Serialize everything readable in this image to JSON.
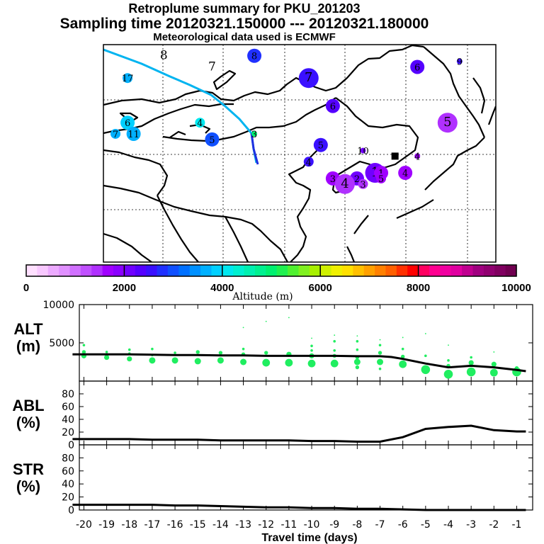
{
  "title": {
    "line1": "Retroplume summary for PKU_201203",
    "line2": "Sampling time   20120321.150000 --- 20120321.180000",
    "line3": "Meteorological data used is ECMWF"
  },
  "chart_data": [
    {
      "type": "scatter",
      "name": "retroplume-map",
      "description": "Backward plume cluster centroids on map of East Asia; labels are days before sampling",
      "receptor_lonlat": [
        116.3,
        40.0
      ],
      "clusters": [
        {
          "label": "8",
          "lon": 78,
          "lat": 58,
          "alt_m": 10,
          "size": "none"
        },
        {
          "label": "7",
          "lon": 86,
          "lat": 56,
          "alt_m": 10,
          "size": "none"
        },
        {
          "label": "17",
          "lon": 72,
          "lat": 54,
          "alt_m": 3600,
          "size": "small"
        },
        {
          "label": "6",
          "lon": 72,
          "lat": 46,
          "alt_m": 3900,
          "size": "medium"
        },
        {
          "label": "7",
          "lon": 70,
          "lat": 44,
          "alt_m": 3700,
          "size": "small"
        },
        {
          "label": "11",
          "lon": 73,
          "lat": 44,
          "alt_m": 3700,
          "size": "medium"
        },
        {
          "label": "4",
          "lon": 84,
          "lat": 46,
          "alt_m": 4200,
          "size": "small"
        },
        {
          "label": "5",
          "lon": 86,
          "lat": 43,
          "alt_m": 3000,
          "size": "medium"
        },
        {
          "label": "3",
          "lon": 93,
          "lat": 44,
          "alt_m": 5000,
          "size": "tiny"
        },
        {
          "label": "8",
          "lon": 93,
          "lat": 58,
          "alt_m": 2700,
          "size": "medium"
        },
        {
          "label": "7",
          "lon": 102,
          "lat": 54,
          "alt_m": 2600,
          "size": "large"
        },
        {
          "label": "6",
          "lon": 106,
          "lat": 49,
          "alt_m": 2400,
          "size": "medium"
        },
        {
          "label": "6",
          "lon": 120,
          "lat": 56,
          "alt_m": 2400,
          "size": "medium"
        },
        {
          "label": "9",
          "lon": 127,
          "lat": 57,
          "alt_m": 2600,
          "size": "tiny"
        },
        {
          "label": "5",
          "lon": 104,
          "lat": 42,
          "alt_m": 2500,
          "size": "medium"
        },
        {
          "label": "4",
          "lon": 102,
          "lat": 39,
          "alt_m": 2500,
          "size": "small"
        },
        {
          "label": "5",
          "lon": 125,
          "lat": 46,
          "alt_m": 1500,
          "size": "large"
        },
        {
          "label": "10",
          "lon": 111,
          "lat": 41,
          "alt_m": 2100,
          "size": "tiny"
        },
        {
          "label": "4",
          "lon": 120,
          "lat": 40,
          "alt_m": 1600,
          "size": "tiny"
        },
        {
          "label": "1",
          "lon": 113,
          "lat": 37,
          "alt_m": 2100,
          "size": "large"
        },
        {
          "label": "3",
          "lon": 106,
          "lat": 36,
          "alt_m": 1700,
          "size": "medium"
        },
        {
          "label": "2",
          "lon": 110,
          "lat": 36,
          "alt_m": 2000,
          "size": "medium"
        },
        {
          "label": "1",
          "lon": 114,
          "lat": 37,
          "alt_m": 1700,
          "size": "medium"
        },
        {
          "label": "4",
          "lon": 108,
          "lat": 35,
          "alt_m": 1500,
          "size": "large"
        },
        {
          "label": "3",
          "lon": 111,
          "lat": 35,
          "alt_m": 1500,
          "size": "small"
        },
        {
          "label": "5",
          "lon": 114,
          "lat": 36,
          "alt_m": 1600,
          "size": "small"
        },
        {
          "label": "4",
          "lon": 118,
          "lat": 37,
          "alt_m": 1600,
          "size": "medium"
        }
      ]
    },
    {
      "type": "heatmap",
      "name": "altitude-colorbar",
      "xlabel": "Altitude (m)",
      "range": [
        0,
        10000
      ],
      "ticks": [
        0,
        2000,
        4000,
        6000,
        8000,
        10000
      ],
      "colors": [
        "#ffe0ff",
        "#f8c8ff",
        "#ecaaff",
        "#e090ff",
        "#d070ff",
        "#c050ff",
        "#b030ff",
        "#a000ff",
        "#8a00ff",
        "#7000ff",
        "#5500ff",
        "#3a10ff",
        "#2030ff",
        "#1050ff",
        "#0070ff",
        "#0090ff",
        "#00b0ff",
        "#00d0ff",
        "#00e8f0",
        "#00f0d0",
        "#00f0b0",
        "#00f090",
        "#00f070",
        "#20f050",
        "#50f030",
        "#80f020",
        "#a8f000",
        "#d0f000",
        "#f0f000",
        "#ffe000",
        "#ffc000",
        "#ffa000",
        "#ff8000",
        "#ff6000",
        "#ff3000",
        "#ff0000",
        "#ff0060",
        "#ff0090",
        "#f000a0",
        "#e000a0",
        "#c00090",
        "#a00080",
        "#900070",
        "#800060",
        "#700050"
      ]
    },
    {
      "type": "line",
      "name": "altitude-panel",
      "ylabel": "ALT\n(m)",
      "ylim": [
        0,
        10000
      ],
      "yticks": [
        5000,
        10000
      ],
      "x": [
        -20.5,
        -20,
        -19,
        -18,
        -17,
        -16,
        -15,
        -14,
        -13,
        -12,
        -11,
        -10,
        -9,
        -8,
        -7,
        -6.5,
        -6,
        -5,
        -4,
        -3,
        -2,
        -1,
        -0.6
      ],
      "mean_altitude": [
        3500,
        3500,
        3500,
        3500,
        3450,
        3400,
        3400,
        3350,
        3350,
        3300,
        3300,
        3300,
        3300,
        3250,
        3250,
        3150,
        2900,
        2300,
        1800,
        2000,
        1800,
        1450,
        1300
      ],
      "points": [
        {
          "x": -20,
          "alt": 3300,
          "s": 4
        },
        {
          "x": -20,
          "alt": 3800,
          "s": 3
        },
        {
          "x": -20,
          "alt": 4700,
          "s": 2
        },
        {
          "x": -19,
          "alt": 3100,
          "s": 4
        },
        {
          "x": -19,
          "alt": 3800,
          "s": 2
        },
        {
          "x": -18,
          "alt": 2900,
          "s": 4
        },
        {
          "x": -18,
          "alt": 3600,
          "s": 2
        },
        {
          "x": -18,
          "alt": 4100,
          "s": 2
        },
        {
          "x": -17,
          "alt": 2700,
          "s": 5
        },
        {
          "x": -17,
          "alt": 3400,
          "s": 2
        },
        {
          "x": -17,
          "alt": 4200,
          "s": 2
        },
        {
          "x": -16,
          "alt": 2700,
          "s": 5
        },
        {
          "x": -16,
          "alt": 3700,
          "s": 2
        },
        {
          "x": -15,
          "alt": 2600,
          "s": 5
        },
        {
          "x": -15,
          "alt": 3800,
          "s": 3
        },
        {
          "x": -14,
          "alt": 2700,
          "s": 5
        },
        {
          "x": -14,
          "alt": 3700,
          "s": 3
        },
        {
          "x": -13,
          "alt": 2500,
          "s": 5
        },
        {
          "x": -13,
          "alt": 3500,
          "s": 3
        },
        {
          "x": -13,
          "alt": 4200,
          "s": 2
        },
        {
          "x": -13,
          "alt": 7000,
          "s": 1
        },
        {
          "x": -12,
          "alt": 2400,
          "s": 6
        },
        {
          "x": -12,
          "alt": 3700,
          "s": 3
        },
        {
          "x": -12,
          "alt": 7800,
          "s": 1
        },
        {
          "x": -11,
          "alt": 2400,
          "s": 6
        },
        {
          "x": -11,
          "alt": 3500,
          "s": 4
        },
        {
          "x": -11,
          "alt": 8300,
          "s": 1
        },
        {
          "x": -10,
          "alt": 2300,
          "s": 6
        },
        {
          "x": -10,
          "alt": 3300,
          "s": 4
        },
        {
          "x": -10,
          "alt": 4000,
          "s": 2
        },
        {
          "x": -10,
          "alt": 4600,
          "s": 2
        },
        {
          "x": -10,
          "alt": 5600,
          "s": 1
        },
        {
          "x": -9,
          "alt": 2300,
          "s": 6
        },
        {
          "x": -9,
          "alt": 3300,
          "s": 3
        },
        {
          "x": -9,
          "alt": 4000,
          "s": 2
        },
        {
          "x": -9,
          "alt": 5200,
          "s": 2
        },
        {
          "x": -9,
          "alt": 6000,
          "s": 1
        },
        {
          "x": -8,
          "alt": 1800,
          "s": 3
        },
        {
          "x": -8,
          "alt": 2500,
          "s": 5
        },
        {
          "x": -8,
          "alt": 3100,
          "s": 3
        },
        {
          "x": -8,
          "alt": 4100,
          "s": 2
        },
        {
          "x": -8,
          "alt": 5200,
          "s": 2
        },
        {
          "x": -8,
          "alt": 5900,
          "s": 1
        },
        {
          "x": -7,
          "alt": 1600,
          "s": 2
        },
        {
          "x": -7,
          "alt": 2500,
          "s": 5
        },
        {
          "x": -7,
          "alt": 3700,
          "s": 3
        },
        {
          "x": -7,
          "alt": 4700,
          "s": 2
        },
        {
          "x": -7,
          "alt": 5400,
          "s": 1
        },
        {
          "x": -6,
          "alt": 2200,
          "s": 6
        },
        {
          "x": -6,
          "alt": 3200,
          "s": 3
        },
        {
          "x": -6,
          "alt": 4200,
          "s": 2
        },
        {
          "x": -6,
          "alt": 5700,
          "s": 1
        },
        {
          "x": -5,
          "alt": 1500,
          "s": 7
        },
        {
          "x": -5,
          "alt": 3300,
          "s": 2
        },
        {
          "x": -5,
          "alt": 6200,
          "s": 1
        },
        {
          "x": -4,
          "alt": 900,
          "s": 7
        },
        {
          "x": -4,
          "alt": 2000,
          "s": 3
        },
        {
          "x": -4,
          "alt": 2700,
          "s": 2
        },
        {
          "x": -4,
          "alt": 4700,
          "s": 1
        },
        {
          "x": -3,
          "alt": 1200,
          "s": 7
        },
        {
          "x": -3,
          "alt": 2400,
          "s": 4
        },
        {
          "x": -3,
          "alt": 3100,
          "s": 2
        },
        {
          "x": -2,
          "alt": 1100,
          "s": 6
        },
        {
          "x": -2,
          "alt": 2200,
          "s": 4
        },
        {
          "x": -2,
          "alt": 3800,
          "s": 1
        },
        {
          "x": -1,
          "alt": 1200,
          "s": 7
        },
        {
          "x": -1,
          "alt": 1700,
          "s": 3
        }
      ]
    },
    {
      "type": "line",
      "name": "abl-panel",
      "ylabel": "ABL\n(%)",
      "ylim": [
        0,
        100
      ],
      "yticks": [
        0,
        20,
        40,
        60,
        80
      ],
      "x": [
        -20.5,
        -20,
        -19,
        -18,
        -17,
        -16,
        -15,
        -14,
        -13,
        -12,
        -11,
        -10,
        -9,
        -8,
        -7,
        -6,
        -5,
        -4,
        -3,
        -2,
        -1,
        -0.6
      ],
      "values": [
        9,
        9,
        9,
        9,
        8,
        8,
        8,
        7,
        7,
        7,
        7,
        6,
        6,
        5,
        5,
        12,
        25,
        28,
        30,
        23,
        21,
        21
      ]
    },
    {
      "type": "line",
      "name": "str-panel",
      "ylabel": "STR\n(%)",
      "ylim": [
        0,
        100
      ],
      "yticks": [
        0,
        20,
        40,
        60,
        80
      ],
      "xlabel": "Travel time (days)",
      "xticks": [
        -20,
        -19,
        -18,
        -17,
        -16,
        -15,
        -14,
        -13,
        -12,
        -11,
        -10,
        -9,
        -8,
        -7,
        -6,
        -5,
        -4,
        -3,
        -2,
        -1
      ],
      "x": [
        -20.5,
        -20,
        -19,
        -18,
        -17,
        -16,
        -15,
        -14,
        -13,
        -12,
        -11,
        -10,
        -9,
        -8,
        -7,
        -6,
        -5,
        -4,
        -3,
        -2,
        -1,
        -0.6
      ],
      "values": [
        8,
        8,
        8,
        8,
        8,
        7,
        7,
        6,
        5,
        4,
        4,
        3,
        3,
        2,
        2,
        1,
        0,
        0,
        0,
        0,
        0,
        0
      ]
    }
  ]
}
